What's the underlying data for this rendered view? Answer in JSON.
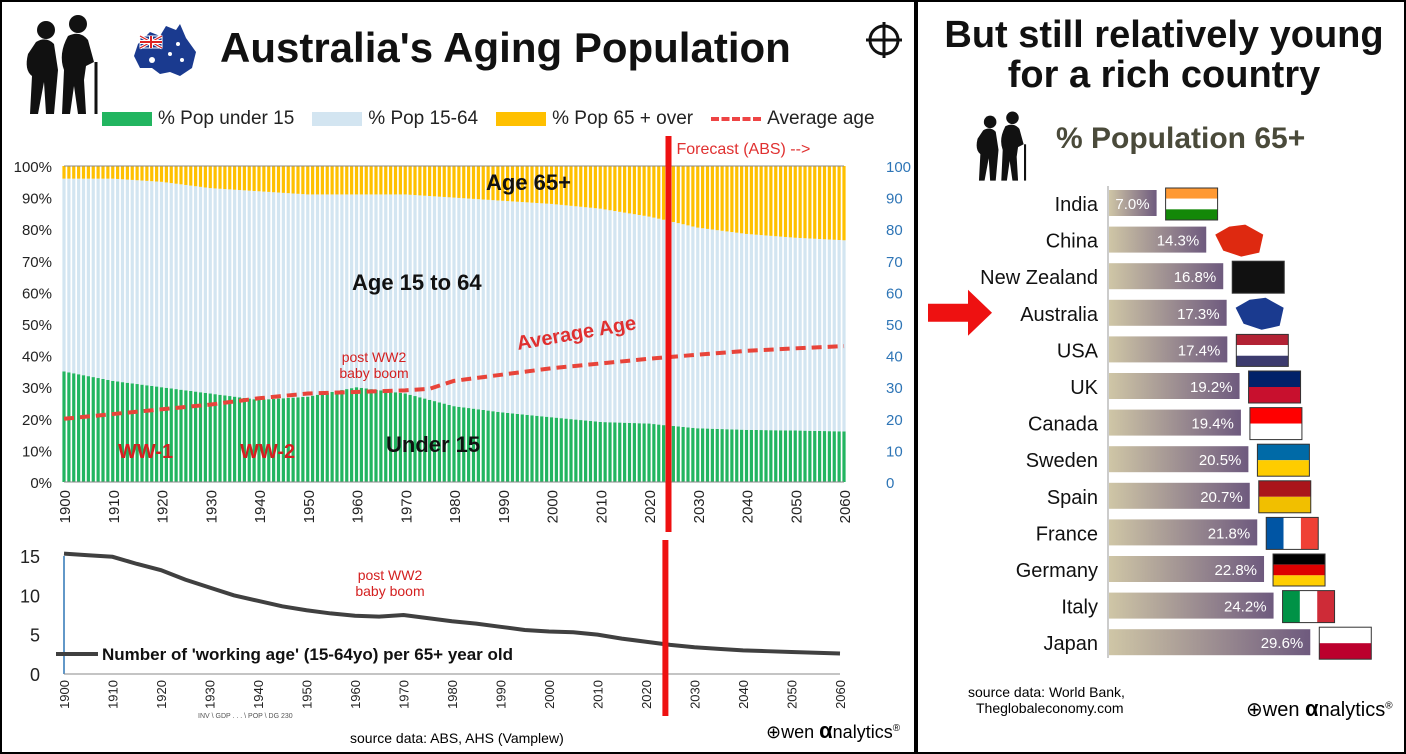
{
  "left": {
    "title": "Australia's Aging Population",
    "legend": {
      "under15": "% Pop under 15",
      "working": "% Pop 15-64",
      "over65": "% Pop 65 + over",
      "avg_age": "Average age"
    },
    "forecast_label": "Forecast (ABS) -->",
    "annotations": {
      "age65": "Age 65+",
      "age15to64": "Age 15 to 64",
      "under15": "Under 15",
      "average_age": "Average Age",
      "ww1": "WW-1",
      "ww2": "WW-2",
      "boom_line1": "post WW2",
      "boom_line2": "baby boom"
    },
    "lower_chart_label": "Number of 'working age' (15-64yo) per 65+ year old",
    "tiny_note": "INV \\ GDP . . . \\ POP \\ DG 230",
    "source": "source data: ABS, AHS (Vamplew)",
    "brand_left": "wen",
    "brand_alpha": "α",
    "brand_right": "nalytics",
    "brand_mark": "®"
  },
  "chart_data": [
    {
      "type": "bar",
      "stacked": true,
      "title": "Australia's Aging Population",
      "ylim": [
        0,
        100
      ],
      "y_ticks": [
        "0%",
        "10%",
        "20%",
        "30%",
        "40%",
        "50%",
        "60%",
        "70%",
        "80%",
        "90%",
        "100%"
      ],
      "y2_ticks": [
        "0",
        "10",
        "20",
        "30",
        "40",
        "50",
        "60",
        "70",
        "80",
        "90",
        "100"
      ],
      "y2lim": [
        0,
        100
      ],
      "x_ticks": [
        "1900",
        "1910",
        "1920",
        "1930",
        "1940",
        "1950",
        "1960",
        "1970",
        "1980",
        "1990",
        "2000",
        "2010",
        "2020",
        "2030",
        "2040",
        "2050",
        "2060"
      ],
      "forecast_start": 2024,
      "x": [
        1900,
        1910,
        1920,
        1930,
        1940,
        1950,
        1960,
        1970,
        1980,
        1990,
        2000,
        2010,
        2020,
        2023,
        2030,
        2040,
        2050,
        2060
      ],
      "series": [
        {
          "name": "% Pop under 15",
          "color": "#22b560",
          "values": [
            35,
            32,
            30,
            28,
            26,
            27,
            30,
            28,
            24,
            22,
            20.5,
            19,
            18.5,
            18,
            17,
            16.5,
            16.3,
            16
          ]
        },
        {
          "name": "% Pop 15-64",
          "color": "#d3e5f1",
          "values": [
            61,
            64,
            65,
            65,
            66,
            64,
            61,
            63,
            66,
            67,
            67.5,
            67.5,
            65.5,
            65,
            63.5,
            62,
            61,
            60.5
          ]
        },
        {
          "name": "% Pop 65 + over",
          "color": "#ffc000",
          "values": [
            4,
            4,
            5,
            7,
            8,
            9,
            9,
            9,
            10,
            11,
            12,
            13.5,
            16,
            17,
            19.5,
            21.5,
            22.7,
            23.5
          ]
        }
      ],
      "line": {
        "name": "Average age",
        "color": "#e8443a",
        "x": [
          1900,
          1910,
          1920,
          1930,
          1940,
          1950,
          1960,
          1970,
          1975,
          1980,
          1990,
          2000,
          2010,
          2020,
          2030,
          2040,
          2050,
          2060
        ],
        "values": [
          20,
          21.5,
          23,
          24.5,
          26.5,
          28,
          28.5,
          29,
          29.5,
          32,
          34,
          36,
          37.5,
          39,
          40.3,
          41.5,
          42.3,
          43
        ]
      }
    },
    {
      "type": "line",
      "ylim": [
        0,
        15
      ],
      "y_ticks": [
        "0",
        "5",
        "10",
        "15"
      ],
      "x_ticks": [
        "1900",
        "1910",
        "1920",
        "1930",
        "1940",
        "1950",
        "1960",
        "1970",
        "1980",
        "1990",
        "2000",
        "2010",
        "2020",
        "2030",
        "2040",
        "2050",
        "2060"
      ],
      "series": [
        {
          "name": "Number of 'working age' (15-64yo) per 65+ year old",
          "color": "#404040",
          "x": [
            1900,
            1905,
            1910,
            1915,
            1920,
            1925,
            1930,
            1935,
            1940,
            1945,
            1950,
            1955,
            1960,
            1965,
            1970,
            1975,
            1980,
            1985,
            1990,
            1995,
            2000,
            2005,
            2010,
            2015,
            2020,
            2025,
            2030,
            2035,
            2040,
            2045,
            2050,
            2055,
            2060
          ],
          "values": [
            15.3,
            15.1,
            14.9,
            14.0,
            13.2,
            12.0,
            11.0,
            10.0,
            9.3,
            8.6,
            8.1,
            7.7,
            7.4,
            7.3,
            7.5,
            7.1,
            6.7,
            6.4,
            6.0,
            5.6,
            5.4,
            5.3,
            5.0,
            4.5,
            4.1,
            3.7,
            3.4,
            3.2,
            3.0,
            2.9,
            2.8,
            2.7,
            2.6
          ]
        }
      ]
    },
    {
      "type": "bar",
      "orientation": "horizontal",
      "title": "% Population 65+",
      "categories": [
        "India",
        "China",
        "New Zealand",
        "Australia",
        "USA",
        "UK",
        "Canada",
        "Sweden",
        "Spain",
        "France",
        "Germany",
        "Italy",
        "Japan"
      ],
      "values": [
        7.0,
        14.3,
        16.8,
        17.3,
        17.4,
        19.2,
        19.4,
        20.5,
        20.7,
        21.8,
        22.8,
        24.2,
        29.6
      ],
      "labels": [
        "7.0%",
        "14.3%",
        "16.8%",
        "17.3%",
        "17.4%",
        "19.2%",
        "19.4%",
        "20.5%",
        "20.7%",
        "21.8%",
        "22.8%",
        "24.2%",
        "29.6%"
      ],
      "highlight": "Australia"
    }
  ],
  "right": {
    "title_line1": "But still relatively young",
    "title_line2": "for a rich country",
    "subtitle": "% Population 65+",
    "source_line1": "source data: World Bank,",
    "source_line2": "Theglobaleconomy.com",
    "brand_left": "wen",
    "brand_alpha": "α",
    "brand_right": "nalytics",
    "brand_mark": "®"
  },
  "icons": {
    "elderly": "elderly-couple-icon",
    "crosshair": "crosshair-icon",
    "australia_map": "australia-map-flag-icon",
    "arrow": "red-arrow-icon",
    "owen_logo": "owen-logo-icon"
  }
}
